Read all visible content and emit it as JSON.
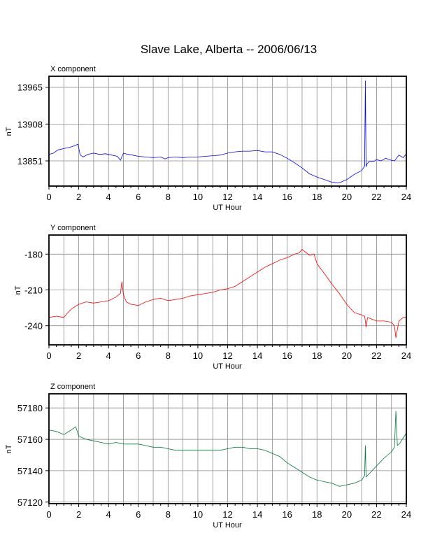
{
  "title": "Slave Lake, Alberta -- 2006/06/13",
  "chart_data": [
    {
      "type": "line",
      "title": "X component",
      "xlabel": "UT Hour",
      "ylabel": "nT",
      "xlim": [
        0,
        24
      ],
      "ylim": [
        13812,
        13982
      ],
      "xticks": [
        0,
        2,
        4,
        6,
        8,
        10,
        12,
        14,
        16,
        18,
        20,
        22,
        24
      ],
      "yticks": [
        13851,
        13908,
        13965
      ],
      "grid": true,
      "color": "#0000ff",
      "series": [
        {
          "x": [
            0,
            0.3,
            0.6,
            1.0,
            1.4,
            1.8,
            1.95,
            2.1,
            2.3,
            2.6,
            3.0,
            3.4,
            3.8,
            4.2,
            4.6,
            4.8,
            5.0,
            5.3,
            5.6,
            6.0,
            6.5,
            7.0,
            7.5,
            7.8,
            8.0,
            8.5,
            9.0,
            9.5,
            10.0,
            10.5,
            11.0,
            11.5,
            12.0,
            12.5,
            13.0,
            13.5,
            14.0,
            14.5,
            15.0,
            15.5,
            16.0,
            16.5,
            17.0,
            17.5,
            18.0,
            18.5,
            19.0,
            19.5,
            20.0,
            20.5,
            21.0,
            21.2,
            21.25,
            21.3,
            21.35,
            21.5,
            21.8,
            22.0,
            22.3,
            22.6,
            23.0,
            23.2,
            23.5,
            23.8,
            24.0
          ],
          "y": [
            13861,
            13863,
            13868,
            13870,
            13872,
            13875,
            13877,
            13860,
            13857,
            13861,
            13863,
            13861,
            13862,
            13860,
            13858,
            13852,
            13863,
            13861,
            13860,
            13858,
            13857,
            13856,
            13857,
            13854,
            13856,
            13857,
            13856,
            13857,
            13857,
            13858,
            13859,
            13860,
            13863,
            13865,
            13866,
            13866,
            13867,
            13865,
            13865,
            13861,
            13855,
            13848,
            13840,
            13831,
            13826,
            13822,
            13818,
            13817,
            13822,
            13830,
            13836,
            13843,
            13975,
            13842,
            13846,
            13850,
            13850,
            13853,
            13851,
            13855,
            13852,
            13851,
            13860,
            13856,
            13862
          ]
        }
      ]
    },
    {
      "type": "line",
      "title": "Y component",
      "xlabel": "UT Hour",
      "ylabel": "nT",
      "xlim": [
        0,
        24
      ],
      "ylim": [
        -256,
        -164
      ],
      "xticks": [
        0,
        2,
        4,
        6,
        8,
        10,
        12,
        14,
        16,
        18,
        20,
        22,
        24
      ],
      "yticks": [
        -180,
        -210,
        -240
      ],
      "grid": true,
      "color": "#ff0000",
      "series": [
        {
          "x": [
            0,
            0.5,
            1.0,
            1.2,
            1.5,
            2.0,
            2.5,
            3.0,
            3.5,
            4.0,
            4.5,
            4.8,
            4.9,
            5.0,
            5.2,
            5.5,
            6.0,
            6.5,
            7.0,
            7.5,
            8.0,
            8.5,
            9.0,
            9.5,
            10.0,
            10.5,
            11.0,
            11.5,
            12.0,
            12.5,
            13.0,
            13.5,
            14.0,
            14.5,
            15.0,
            15.5,
            16.0,
            16.5,
            16.8,
            17.0,
            17.2,
            17.5,
            17.8,
            18.0,
            18.3,
            18.6,
            19.0,
            19.5,
            20.0,
            20.5,
            21.0,
            21.2,
            21.3,
            21.4,
            21.6,
            22.0,
            22.5,
            23.0,
            23.2,
            23.3,
            23.5,
            23.8,
            24.0
          ],
          "y": [
            -233,
            -232,
            -233,
            -230,
            -226,
            -222,
            -220,
            -221,
            -220,
            -219,
            -216,
            -213,
            -203,
            -214,
            -220,
            -222,
            -223,
            -220,
            -218,
            -217,
            -219,
            -218,
            -217,
            -215,
            -214,
            -213,
            -212,
            -210,
            -209,
            -207,
            -203,
            -199,
            -195,
            -191,
            -188,
            -185,
            -183,
            -180,
            -179,
            -176,
            -178,
            -181,
            -180,
            -188,
            -193,
            -198,
            -205,
            -213,
            -222,
            -229,
            -231,
            -232,
            -241,
            -233,
            -234,
            -236,
            -236,
            -237,
            -240,
            -250,
            -236,
            -233,
            -233
          ]
        }
      ]
    },
    {
      "type": "line",
      "title": "Z component",
      "xlabel": "UT Hour",
      "ylabel": "nT",
      "xlim": [
        0,
        24
      ],
      "ylim": [
        57119,
        57189
      ],
      "xticks": [
        0,
        2,
        4,
        6,
        8,
        10,
        12,
        14,
        16,
        18,
        20,
        22,
        24
      ],
      "yticks": [
        57120,
        57140,
        57160,
        57180
      ],
      "grid": true,
      "color": "#007a3d",
      "series": [
        {
          "x": [
            0,
            0.5,
            1.0,
            1.5,
            1.8,
            2.0,
            2.5,
            3.0,
            3.5,
            4.0,
            4.5,
            5.0,
            5.5,
            6.0,
            6.5,
            7.0,
            7.5,
            8.0,
            8.5,
            9.0,
            9.5,
            10.0,
            10.5,
            11.0,
            11.5,
            12.0,
            12.5,
            13.0,
            13.5,
            14.0,
            14.5,
            15.0,
            15.5,
            16.0,
            16.5,
            17.0,
            17.5,
            18.0,
            18.5,
            19.0,
            19.5,
            20.0,
            20.5,
            21.0,
            21.2,
            21.25,
            21.3,
            21.5,
            22.0,
            22.5,
            23.0,
            23.2,
            23.3,
            23.4,
            23.6,
            24.0
          ],
          "y": [
            57166,
            57165,
            57163,
            57166,
            57168,
            57162,
            57160,
            57159,
            57158,
            57157,
            57158,
            57157,
            57157,
            57157,
            57156,
            57155,
            57155,
            57154,
            57153,
            57153,
            57153,
            57153,
            57153,
            57153,
            57153,
            57154,
            57155,
            57155,
            57154,
            57154,
            57153,
            57151,
            57149,
            57145,
            57142,
            57139,
            57136,
            57134,
            57133,
            57132,
            57130,
            57131,
            57132,
            57134,
            57137,
            57156,
            57136,
            57138,
            57143,
            57148,
            57152,
            57155,
            57178,
            57156,
            57158,
            57164
          ]
        }
      ]
    }
  ]
}
